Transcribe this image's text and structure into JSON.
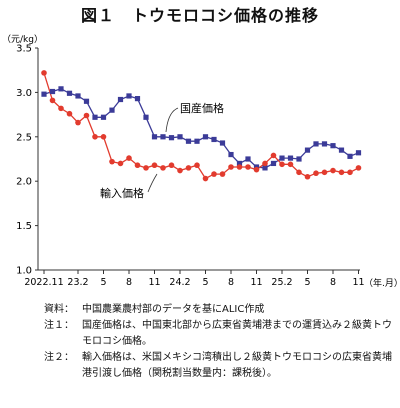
{
  "chart_data": {
    "type": "line",
    "title": "図１　トウモロコシ価格の推移",
    "ylabel": "（元/kg）",
    "xlabel": "（年.月）",
    "ylim": [
      1.0,
      3.5
    ],
    "y_ticks": [
      "1.0",
      "1.5",
      "2.0",
      "2.5",
      "3.0",
      "3.5"
    ],
    "x_tick_labels": [
      {
        "i": 0,
        "label": "2022.11"
      },
      {
        "i": 4,
        "label": "23.2"
      },
      {
        "i": 7,
        "label": "5"
      },
      {
        "i": 10,
        "label": "8"
      },
      {
        "i": 13,
        "label": "11"
      },
      {
        "i": 16,
        "label": "24.2"
      },
      {
        "i": 19,
        "label": "5"
      },
      {
        "i": 22,
        "label": "8"
      },
      {
        "i": 25,
        "label": "11"
      },
      {
        "i": 28,
        "label": "25.2"
      },
      {
        "i": 31,
        "label": "5"
      },
      {
        "i": 34,
        "label": "8"
      },
      {
        "i": 37,
        "label": "11"
      }
    ],
    "series": [
      {
        "name": "国産価格",
        "color": "#3b3b98",
        "marker": "square",
        "values": [
          2.98,
          3.01,
          3.04,
          2.99,
          2.96,
          2.9,
          2.72,
          2.72,
          2.8,
          2.92,
          2.96,
          2.93,
          2.72,
          2.5,
          2.5,
          2.49,
          2.5,
          2.45,
          2.45,
          2.5,
          2.47,
          2.43,
          2.3,
          2.2,
          2.25,
          2.16,
          2.15,
          2.2,
          2.26,
          2.26,
          2.25,
          2.35,
          2.42,
          2.42,
          2.4,
          2.35,
          2.28,
          2.32
        ]
      },
      {
        "name": "輸入価格",
        "color": "#e23b2e",
        "marker": "circle",
        "values": [
          3.22,
          2.91,
          2.82,
          2.76,
          2.66,
          2.74,
          2.5,
          2.5,
          2.22,
          2.2,
          2.26,
          2.18,
          2.15,
          2.18,
          2.15,
          2.18,
          2.12,
          2.15,
          2.18,
          2.03,
          2.08,
          2.08,
          2.16,
          2.16,
          2.16,
          2.13,
          2.2,
          2.29,
          2.19,
          2.19,
          2.1,
          2.05,
          2.09,
          2.1,
          2.12,
          2.1,
          2.1,
          2.15
        ]
      }
    ],
    "grid": false,
    "legend": "inline-labels"
  },
  "notes": [
    {
      "label": "資料：",
      "text": "中国農業農村部のデータを基にALIC作成"
    },
    {
      "label": "注１：",
      "text": "国産価格は、中国東北部から広東省黄埔港までの運賃込み２級黄トウモロコシ価格。"
    },
    {
      "label": "注２：",
      "text": "輸入価格は、米国メキシコ湾積出し２級黄トウモロコシの広東省黄埔港引渡し価格（関税割当数量内：課税後）。"
    }
  ]
}
